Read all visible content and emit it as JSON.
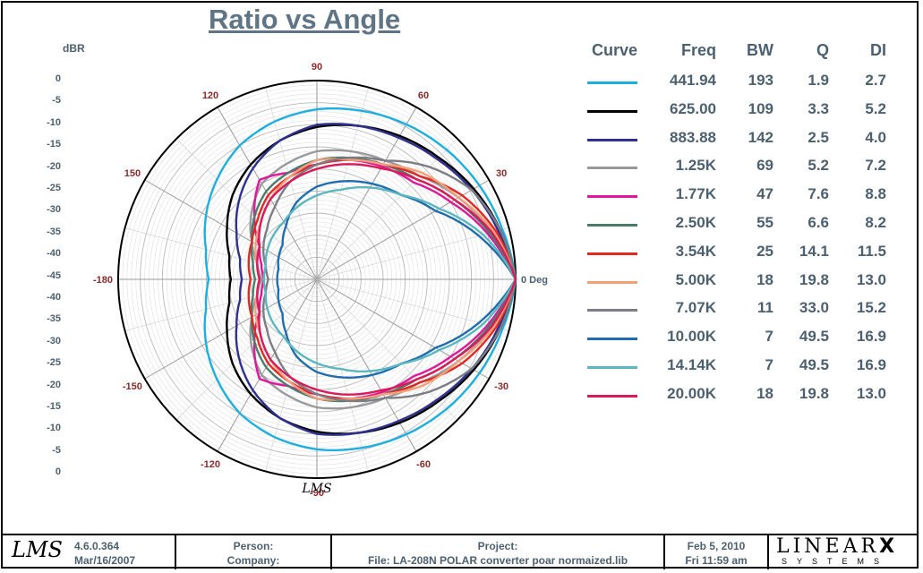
{
  "title": "Ratio vs Angle",
  "db_axis_label": "dBR",
  "db_ticks": [
    "0",
    "-5",
    "-10",
    "-15",
    "-20",
    "-25",
    "-30",
    "-35",
    "-40",
    "-45",
    "-40",
    "-35",
    "-30",
    "-25",
    "-20",
    "-15",
    "-10",
    "-5",
    "0"
  ],
  "angle_labels": [
    {
      "text": "0 Deg",
      "angle": 0
    },
    {
      "text": "30",
      "angle": 30
    },
    {
      "text": "60",
      "angle": 60
    },
    {
      "text": "90",
      "angle": 90
    },
    {
      "text": "120",
      "angle": 120
    },
    {
      "text": "150",
      "angle": 150
    },
    {
      "text": "-180",
      "angle": 180
    },
    {
      "text": "-150",
      "angle": 210
    },
    {
      "text": "-120",
      "angle": 240
    },
    {
      "text": "-90",
      "angle": 270
    },
    {
      "text": "-60",
      "angle": 300
    },
    {
      "text": "-30",
      "angle": 330
    }
  ],
  "plot_logo": "LMS",
  "table": {
    "headers": {
      "curve": "Curve",
      "freq": "Freq",
      "bw": "BW",
      "q": "Q",
      "di": "DI"
    },
    "rows": [
      {
        "color": "#1eaee0",
        "freq": "441.94",
        "bw": "193",
        "q": "1.9",
        "di": "2.7"
      },
      {
        "color": "#000000",
        "freq": "625.00",
        "bw": "109",
        "q": "3.3",
        "di": "5.2"
      },
      {
        "color": "#2e3192",
        "freq": "883.88",
        "bw": "142",
        "q": "2.5",
        "di": "4.0"
      },
      {
        "color": "#9a9a9a",
        "freq": "1.25K",
        "bw": "69",
        "q": "5.2",
        "di": "7.2"
      },
      {
        "color": "#e0169b",
        "freq": "1.77K",
        "bw": "47",
        "q": "7.6",
        "di": "8.8"
      },
      {
        "color": "#4d7c6a",
        "freq": "2.50K",
        "bw": "55",
        "q": "6.6",
        "di": "8.2"
      },
      {
        "color": "#e02a24",
        "freq": "3.54K",
        "bw": "25",
        "q": "14.1",
        "di": "11.5"
      },
      {
        "color": "#f4a07a",
        "freq": "5.00K",
        "bw": "18",
        "q": "19.8",
        "di": "13.0"
      },
      {
        "color": "#7d7d85",
        "freq": "7.07K",
        "bw": "11",
        "q": "33.0",
        "di": "15.2"
      },
      {
        "color": "#1f6db0",
        "freq": "10.00K",
        "bw": "7",
        "q": "49.5",
        "di": "16.9"
      },
      {
        "color": "#5bb6bf",
        "freq": "14.14K",
        "bw": "7",
        "q": "49.5",
        "di": "16.9"
      },
      {
        "color": "#d81b5a",
        "freq": "20.00K",
        "bw": "18",
        "q": "19.8",
        "di": "13.0"
      }
    ]
  },
  "chart_data": {
    "type": "polar",
    "title": "Ratio vs Angle",
    "radial_label": "dBR",
    "r_range": [
      -45,
      0
    ],
    "angles_deg": [
      0,
      15,
      30,
      45,
      60,
      75,
      90,
      105,
      120,
      135,
      150,
      165,
      180
    ],
    "symmetric": true,
    "series": [
      {
        "freq": "441.94",
        "color": "#1eaee0",
        "values": [
          0,
          -1.5,
          -2.5,
          -3.5,
          -4.5,
          -5.5,
          -6.5,
          -8,
          -10,
          -13,
          -16,
          -19,
          -20.5
        ]
      },
      {
        "freq": "625.00",
        "color": "#000000",
        "values": [
          0,
          -2,
          -4,
          -6,
          -7.5,
          -9,
          -10.5,
          -12.5,
          -15,
          -18,
          -21.5,
          -24.5,
          -25.5
        ]
      },
      {
        "freq": "883.88",
        "color": "#2e3192",
        "values": [
          0,
          -2.5,
          -4.5,
          -6.5,
          -8,
          -9,
          -10,
          -12.5,
          -16,
          -20,
          -24,
          -27,
          -28
        ]
      },
      {
        "freq": "1.25K",
        "color": "#9a9a9a",
        "values": [
          0,
          -4,
          -8,
          -12,
          -14,
          -15,
          -16,
          -18,
          -20,
          -24,
          -28,
          -31,
          -32.5
        ]
      },
      {
        "freq": "1.77K",
        "color": "#e0169b",
        "values": [
          0,
          -5,
          -10,
          -14,
          -15.5,
          -17,
          -19,
          -20,
          -19,
          -25,
          -30,
          -32,
          -33
        ]
      },
      {
        "freq": "2.50K",
        "color": "#4d7c6a",
        "values": [
          0,
          -4.5,
          -9,
          -13,
          -15,
          -16.5,
          -18,
          -20,
          -22,
          -25,
          -28,
          -30,
          -31
        ]
      },
      {
        "freq": "3.54K",
        "color": "#e02a24",
        "values": [
          0,
          -3,
          -7,
          -12,
          -15,
          -17,
          -19,
          -21,
          -23,
          -26,
          -28,
          -29,
          -30
        ]
      },
      {
        "freq": "5.00K",
        "color": "#f4a07a",
        "values": [
          0,
          -3.5,
          -8,
          -11,
          -15,
          -17,
          -18,
          -21,
          -24,
          -27,
          -29,
          -31,
          -32
        ]
      },
      {
        "freq": "7.07K",
        "color": "#7d7d85",
        "values": [
          0,
          -2,
          -4.5,
          -9,
          -14,
          -16.5,
          -19,
          -22,
          -26,
          -29,
          -31,
          -33,
          -34
        ]
      },
      {
        "freq": "10.00K",
        "color": "#1f6db0",
        "values": [
          0,
          -7,
          -14,
          -18,
          -20,
          -22,
          -24,
          -27,
          -31,
          -34,
          -35,
          -36,
          -36
        ]
      },
      {
        "freq": "14.14K",
        "color": "#5bb6bf",
        "values": [
          0,
          -6,
          -13,
          -18,
          -21,
          -24,
          -26,
          -28,
          -30,
          -31,
          -32,
          -33,
          -33
        ]
      },
      {
        "freq": "20.00K",
        "color": "#d81b5a",
        "values": [
          0,
          -4,
          -9,
          -13,
          -16,
          -18,
          -20,
          -22,
          -24,
          -27,
          -30,
          -31,
          -32
        ]
      }
    ]
  },
  "footer": {
    "logo": "LMS",
    "version": "4.6.0.364",
    "build_date": "Mar/16/2007",
    "person_label": "Person:",
    "company_label": "Company:",
    "project_label": "Project:",
    "file": "File: LA-208N POLAR converter poar normaized.lib",
    "date": "Feb  5, 2010",
    "time": "Fri 11:59 am",
    "brand_line1": "LINEAR",
    "brand_x": "X",
    "brand_line2": "SYSTEMS"
  }
}
